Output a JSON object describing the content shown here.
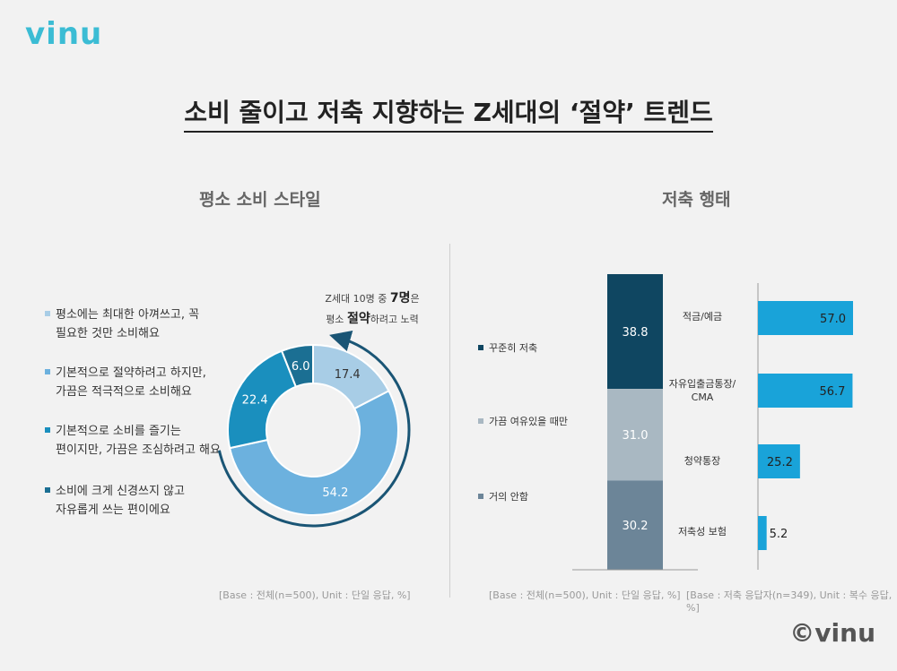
{
  "logo": "vinu",
  "title": "소비 줄이고 저축 지향하는 Z세대의 ‘절약’ 트렌드",
  "sections": {
    "left": "평소 소비 스타일",
    "right": "저축 행태"
  },
  "callout": {
    "line1_pre": "Z세대 10명 중 ",
    "line1_bold": "7명",
    "line1_post": "은",
    "line2_pre": "평소 ",
    "line2_bold": "절약",
    "line2_post": "하려고 노력"
  },
  "legend_left": [
    {
      "lines": [
        "평소에는 최대한 아껴쓰고, 꼭",
        "필요한 것만 소비해요"
      ],
      "color": "#a8cde6"
    },
    {
      "lines": [
        "기본적으로 절약하려고 하지만,",
        "가끔은 적극적으로 소비해요"
      ],
      "color": "#6cb1de"
    },
    {
      "lines": [
        "기본적으로 소비를 즐기는",
        "편이지만, 가끔은 조심하려고 해요"
      ],
      "color": "#1a8fbe"
    },
    {
      "lines": [
        "소비에 크게 신경쓰지 않고",
        "자유롭게 쓰는 편이에요"
      ],
      "color": "#1b6f93"
    }
  ],
  "legend_stack": [
    {
      "label": "꾸준히 저축",
      "color": "#0f4661"
    },
    {
      "label": "가끔 여유있을 때만",
      "color": "#a9b8c2"
    },
    {
      "label": "거의 안함",
      "color": "#6c8598"
    }
  ],
  "notes": {
    "donut": "[Base : 전체(n=500), Unit : 단일 응답, %]",
    "stack": "[Base : 전체(n=500), Unit : 단일 응답, %]",
    "hbar": "[Base : 저축 응답자(n=349), Unit : 복수 응답, %]"
  },
  "copyright": "©vinu",
  "chart_data": [
    {
      "type": "pie",
      "categories": [
        "평소에는 최대한 아껴쓰고, 꼭 필요한 것만 소비해요",
        "기본적으로 절약하려고 하지만, 가끔은 적극적으로 소비해요",
        "기본적으로 소비를 즐기는 편이지만, 가끔은 조심하려고 해요",
        "소비에 크게 신경쓰지 않고 자유롭게 쓰는 편이에요"
      ],
      "values": [
        17.4,
        54.2,
        22.4,
        6.0
      ],
      "labels": [
        "17.4",
        "54.2",
        "22.4",
        "6.0"
      ],
      "colors": [
        "#a8cde6",
        "#6cb1de",
        "#1a8fbe",
        "#1b6f93"
      ],
      "title": "평소 소비 스타일"
    },
    {
      "type": "bar",
      "stacked": true,
      "categories": [
        "꾸준히 저축",
        "가끔 여유있을 때만",
        "거의 안함"
      ],
      "values": [
        38.8,
        31.0,
        30.2
      ],
      "labels": [
        "38.8",
        "31.0",
        "30.2"
      ],
      "colors": [
        "#0f4661",
        "#a9b8c2",
        "#6c8598"
      ],
      "title": "저축 행태"
    },
    {
      "type": "bar",
      "orientation": "horizontal",
      "categories": [
        "적금/예금",
        "자유입출금통장/ CMA",
        "청약통장",
        "저축성 보험"
      ],
      "values": [
        57.0,
        56.7,
        25.2,
        5.2
      ],
      "labels": [
        "57.0",
        "56.7",
        "25.2",
        "5.2"
      ],
      "color": "#19a3d9",
      "xlim": [
        0,
        57.0
      ]
    }
  ]
}
